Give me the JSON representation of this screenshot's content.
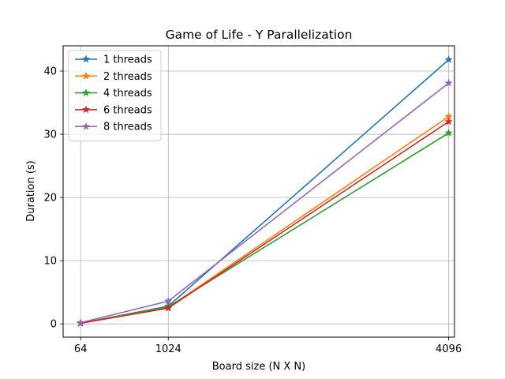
{
  "chart_data": {
    "type": "line",
    "title": "Game of Life - Y Parallelization",
    "xlabel": "Board size (N X N)",
    "ylabel": "Duration (s)",
    "x": [
      64,
      1024,
      4096
    ],
    "xticks": [
      64,
      1024,
      4096
    ],
    "xlim": [
      -128,
      4160
    ],
    "yticks": [
      0,
      10,
      20,
      30,
      40
    ],
    "ylim": [
      -2.1,
      44
    ],
    "grid": true,
    "legend_position": "top-left",
    "marker": "star",
    "series": [
      {
        "name": "1 threads",
        "values": [
          0.1,
          2.8,
          41.8
        ],
        "color": "#1f77b4"
      },
      {
        "name": "2 threads",
        "values": [
          0.1,
          2.6,
          32.8
        ],
        "color": "#ff7f0e"
      },
      {
        "name": "4 threads",
        "values": [
          0.1,
          2.7,
          30.2
        ],
        "color": "#2ca02c"
      },
      {
        "name": "6 threads",
        "values": [
          0.1,
          2.5,
          32.0
        ],
        "color": "#d62728"
      },
      {
        "name": "8 threads",
        "values": [
          0.2,
          3.6,
          38.1
        ],
        "color": "#9467bd"
      }
    ]
  }
}
